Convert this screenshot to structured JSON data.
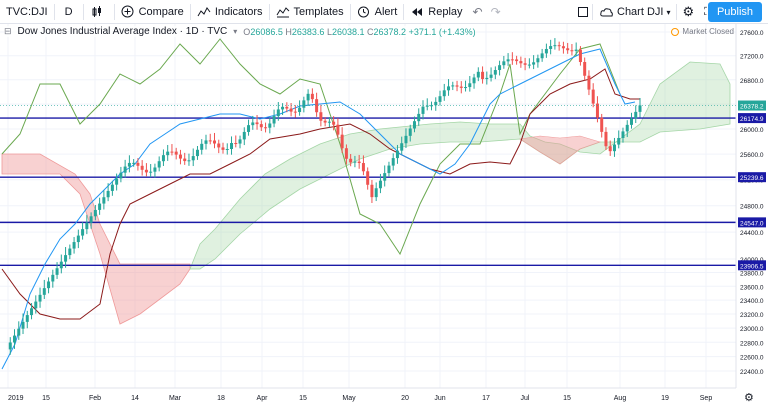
{
  "toolbar": {
    "symbol": "TVC:DJI",
    "interval": "D",
    "compare": "Compare",
    "indicators": "Indicators",
    "templates": "Templates",
    "alert": "Alert",
    "replay": "Replay",
    "layout_name": "Chart DJI",
    "publish": "Publish"
  },
  "legend": {
    "title": "Dow Jones Industrial Average Index · 1D · TVC",
    "o": "O",
    "o_val": "26086.5",
    "h": "H",
    "h_val": "26383.6",
    "l": "L",
    "l_val": "26038.1",
    "c": "C",
    "c_val": "26378.2",
    "change": "+371.1 (+1.43%)"
  },
  "market_status": "Market Closed",
  "colors": {
    "up": "#26a69a",
    "down": "#ef5350",
    "tenkan": "#2196f3",
    "kijun": "#8b1a1a",
    "lagging": "#4caf50",
    "cloud_bull": "#a5d6a7",
    "cloud_bear": "#ef9a9a",
    "hline": "#1a1aa6",
    "accent": "#2196f3"
  },
  "price_scale": {
    "ticks": [
      "27600.0",
      "27200.0",
      "26800.0",
      "26400.0",
      "26000.0",
      "25600.0",
      "25200.0",
      "24800.0",
      "24400.0",
      "24000.0",
      "23800.0",
      "23600.0",
      "23400.0",
      "23200.0",
      "23000.0",
      "22800.0",
      "22600.0",
      "22400.0"
    ],
    "current_price": "26378.2",
    "lines": [
      "26174.9",
      "25239.6",
      "24547.0",
      "23906.5"
    ]
  },
  "time_scale": [
    "2019",
    "15",
    "Feb",
    "14",
    "Mar",
    "18",
    "Apr",
    "15",
    "May",
    "20",
    "Jun",
    "17",
    "Jul",
    "15",
    "Aug",
    "19",
    "Sep"
  ],
  "chart_data": {
    "type": "candlestick",
    "symbol": "TVC:DJI",
    "interval": "1D",
    "last": {
      "open": 26086.5,
      "high": 26383.6,
      "low": 26038.1,
      "close": 26378.2,
      "change": 371.1,
      "change_pct": 1.43
    },
    "horizontal_lines": [
      26174.9,
      25239.6,
      24547.0,
      23906.5
    ],
    "indicator": "Ichimoku Cloud",
    "ylim": [
      22400,
      27600
    ]
  }
}
